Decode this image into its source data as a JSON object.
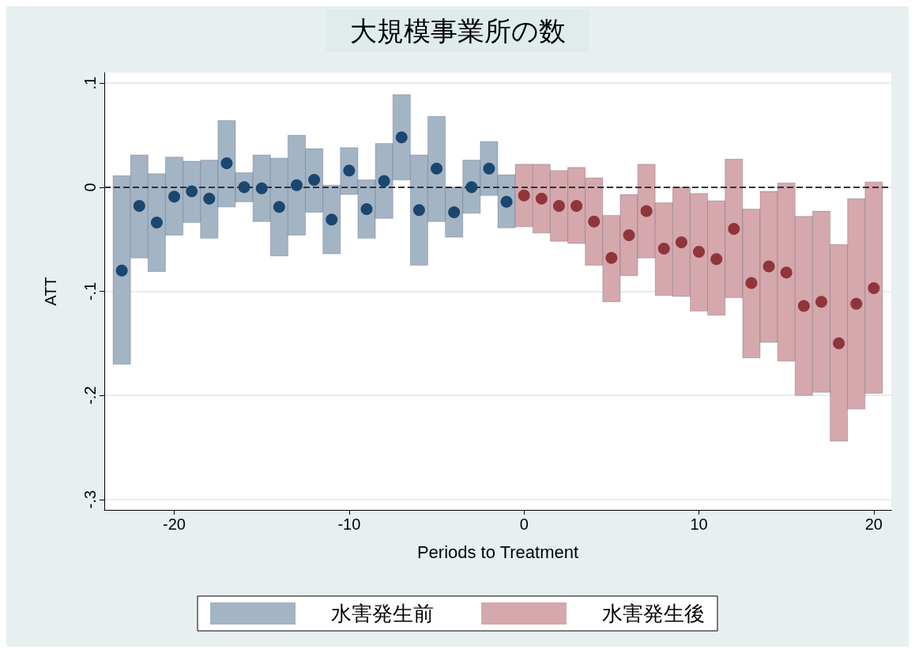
{
  "chart_data": {
    "type": "scatter",
    "title": "大規模事業所の数",
    "xlabel": "Periods to Treatment",
    "ylabel": "ATT",
    "xlim": [
      -24,
      21
    ],
    "xticks": [
      -20,
      -10,
      0,
      10,
      20
    ],
    "ylim": [
      -0.31,
      0.11
    ],
    "yticks": [
      {
        "value": 0.1,
        "label": ".1"
      },
      {
        "value": 0,
        "label": "0"
      },
      {
        "value": -0.1,
        "label": "-.1"
      },
      {
        "value": -0.2,
        "label": "-.2"
      },
      {
        "value": -0.3,
        "label": "-.3"
      }
    ],
    "grid": "y",
    "legend": "bottom",
    "marker": "circle",
    "ref_lines": [
      {
        "axis": "y",
        "value": 0,
        "color": "#333333",
        "line_style": "dashed"
      }
    ],
    "series": [
      {
        "name": "水害発生前",
        "type": "bar",
        "color": "#a3b4c4",
        "x": [
          -23,
          -22,
          -21,
          -20,
          -19,
          -18,
          -17,
          -16,
          -15,
          -14,
          -13,
          -12,
          -11,
          -10,
          -9,
          -8,
          -7,
          -6,
          -5,
          -4,
          -3,
          -2,
          -1
        ],
        "base": [
          -0.17,
          -0.068,
          -0.081,
          -0.046,
          -0.034,
          -0.049,
          -0.019,
          -0.014,
          -0.033,
          -0.066,
          -0.046,
          -0.024,
          -0.064,
          -0.007,
          -0.049,
          -0.03,
          0.007,
          -0.075,
          -0.033,
          -0.048,
          -0.025,
          -0.008,
          -0.039
        ],
        "values": [
          0.181,
          0.099,
          0.094,
          0.075,
          0.059,
          0.075,
          0.083,
          0.028,
          0.064,
          0.094,
          0.096,
          0.061,
          0.066,
          0.045,
          0.056,
          0.072,
          0.082,
          0.106,
          0.101,
          0.048,
          0.051,
          0.052,
          0.051
        ]
      },
      {
        "name": "水害発生後",
        "type": "bar",
        "color": "#d4a8ac",
        "x": [
          0,
          1,
          2,
          3,
          4,
          5,
          6,
          7,
          8,
          9,
          10,
          11,
          12,
          13,
          14,
          15,
          16,
          17,
          18,
          19,
          20
        ],
        "base": [
          -0.038,
          -0.044,
          -0.052,
          -0.054,
          -0.075,
          -0.11,
          -0.085,
          -0.068,
          -0.104,
          -0.105,
          -0.119,
          -0.123,
          -0.106,
          -0.164,
          -0.149,
          -0.167,
          -0.2,
          -0.197,
          -0.244,
          -0.213,
          -0.198
        ],
        "values": [
          0.06,
          0.066,
          0.068,
          0.073,
          0.084,
          0.083,
          0.078,
          0.09,
          0.089,
          0.105,
          0.113,
          0.11,
          0.133,
          0.143,
          0.145,
          0.171,
          0.172,
          0.174,
          0.189,
          0.202,
          0.203
        ]
      },
      {
        "color": "#1a476f",
        "x": [
          -23,
          -22,
          -21,
          -20,
          -19,
          -18,
          -17,
          -16,
          -15,
          -14,
          -13,
          -12,
          -11,
          -10,
          -9,
          -8,
          -7,
          -6,
          -5,
          -4,
          -3,
          -2,
          -1
        ],
        "values": [
          -0.08,
          -0.018,
          -0.034,
          -0.009,
          -0.004,
          -0.011,
          0.023,
          0.0,
          -0.001,
          -0.019,
          0.002,
          0.007,
          -0.031,
          0.016,
          -0.021,
          0.006,
          0.048,
          -0.022,
          0.018,
          -0.024,
          0.0,
          0.018,
          -0.014
        ]
      },
      {
        "color": "#90353b",
        "x": [
          0,
          1,
          2,
          3,
          4,
          5,
          6,
          7,
          8,
          9,
          10,
          11,
          12,
          13,
          14,
          15,
          16,
          17,
          18,
          19,
          20
        ],
        "values": [
          -0.008,
          -0.011,
          -0.018,
          -0.018,
          -0.033,
          -0.068,
          -0.046,
          -0.023,
          -0.059,
          -0.053,
          -0.062,
          -0.069,
          -0.04,
          -0.092,
          -0.076,
          -0.082,
          -0.114,
          -0.11,
          -0.15,
          -0.112,
          -0.097
        ]
      }
    ]
  }
}
